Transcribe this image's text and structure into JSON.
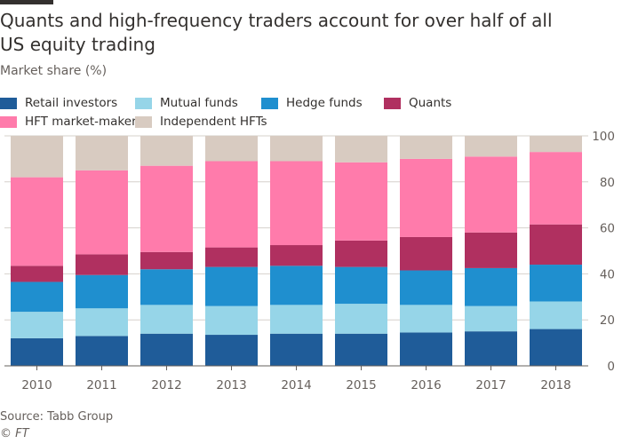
{
  "title": "Quants and high-frequency traders account for over half of all US equity trading",
  "subtitle": "Market share (%)",
  "source": "Source: Tabb Group",
  "copyright": "© FT",
  "colors": {
    "retail": "#1f5c99",
    "mutual": "#96d5e8",
    "hedge": "#1f8fcf",
    "quants": "#b03060",
    "hft_mm": "#ff7bab",
    "indep_hft": "#d8cbc1",
    "axis_text": "#66605c",
    "grid": "#d6d0cb"
  },
  "chart_data": {
    "type": "bar",
    "stacked": true,
    "title": "Quants and high-frequency traders account for over half of all US equity trading",
    "ylabel": "Market share (%)",
    "ylim": [
      0,
      100
    ],
    "yticks": [
      0,
      20,
      40,
      60,
      80,
      100
    ],
    "y_axis_position": "right",
    "grid": true,
    "legend_position": "top",
    "categories": [
      "2010",
      "2011",
      "2012",
      "2013",
      "2014",
      "2015",
      "2016",
      "2017",
      "2018"
    ],
    "series": [
      {
        "name": "Retail investors",
        "color_key": "retail",
        "values": [
          12,
          13,
          14,
          13.5,
          14,
          14,
          14.5,
          15,
          16
        ]
      },
      {
        "name": "Mutual funds",
        "color_key": "mutual",
        "values": [
          11.5,
          12,
          12.5,
          12.5,
          12.5,
          13,
          12,
          11,
          12
        ]
      },
      {
        "name": "Hedge funds",
        "color_key": "hedge",
        "values": [
          13,
          14.5,
          15.5,
          17,
          17,
          16,
          15,
          16.5,
          16
        ]
      },
      {
        "name": "Quants",
        "color_key": "quants",
        "values": [
          7,
          9,
          7.5,
          8.5,
          9,
          11.5,
          14.5,
          15.5,
          17.5
        ]
      },
      {
        "name": "HFT market-makers",
        "color_key": "hft_mm",
        "values": [
          38.5,
          36.5,
          37.5,
          37.5,
          36.5,
          34,
          34,
          33,
          31.5
        ]
      },
      {
        "name": "Independent HFTs",
        "color_key": "indep_hft",
        "values": [
          18,
          15,
          13,
          11,
          11,
          11.5,
          10,
          9,
          7
        ]
      }
    ]
  }
}
